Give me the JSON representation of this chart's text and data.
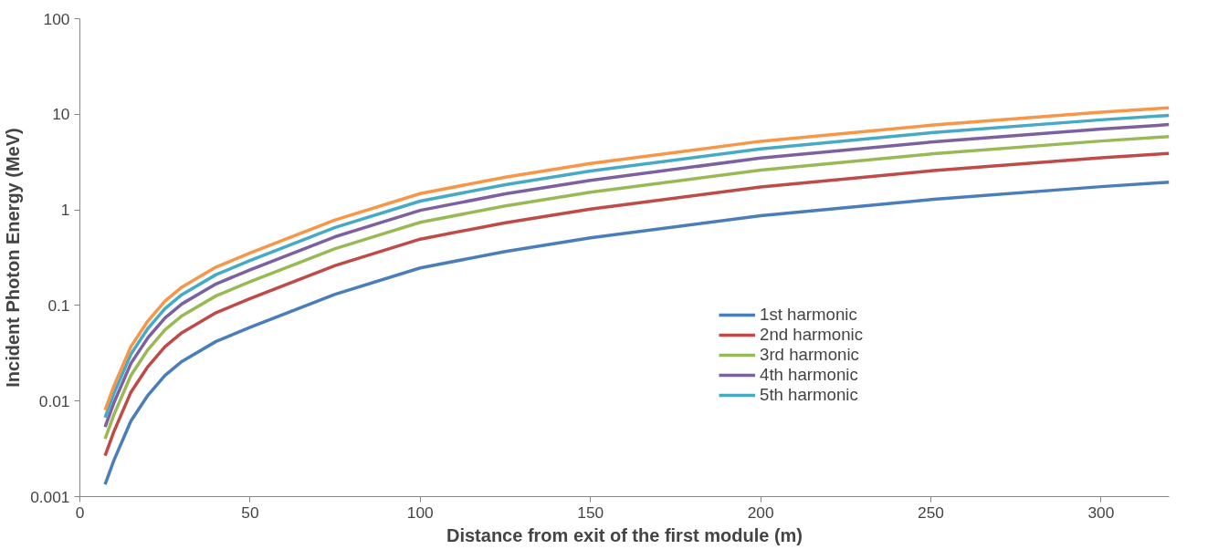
{
  "chart_data": {
    "type": "line",
    "xlabel": "Distance from exit of the first module (m)",
    "ylabel": "Incident Photon Energy (MeV)",
    "x": [
      7.4,
      10,
      15,
      20,
      25,
      30,
      40,
      50,
      75,
      100,
      125,
      150,
      200,
      250,
      300,
      320
    ],
    "series": [
      {
        "name": "1st harmonic",
        "color": "#4a7ebb",
        "values": [
          0.00134,
          0.0024,
          0.0062,
          0.0115,
          0.0185,
          0.026,
          0.042,
          0.059,
          0.131,
          0.247,
          0.367,
          0.51,
          0.87,
          1.28,
          1.75,
          1.95
        ]
      },
      {
        "name": "2nd harmonic",
        "color": "#be4b48",
        "values": [
          0.00268,
          0.0048,
          0.0124,
          0.023,
          0.037,
          0.052,
          0.084,
          0.118,
          0.262,
          0.494,
          0.734,
          1.02,
          1.74,
          2.56,
          3.5,
          3.9
        ]
      },
      {
        "name": "3rd harmonic",
        "color": "#98b954",
        "values": [
          0.00402,
          0.0072,
          0.0186,
          0.0345,
          0.0555,
          0.078,
          0.126,
          0.177,
          0.393,
          0.741,
          1.1,
          1.53,
          2.61,
          3.84,
          5.25,
          5.85
        ]
      },
      {
        "name": "4th harmonic",
        "color": "#7d60a0",
        "values": [
          0.00536,
          0.0096,
          0.0248,
          0.046,
          0.074,
          0.104,
          0.168,
          0.236,
          0.524,
          0.988,
          1.47,
          2.04,
          3.48,
          5.12,
          7.0,
          7.8
        ]
      },
      {
        "name": "5th harmonic",
        "color": "#46aac5",
        "values": [
          0.0067,
          0.012,
          0.031,
          0.0575,
          0.0925,
          0.13,
          0.21,
          0.295,
          0.655,
          1.235,
          1.835,
          2.55,
          4.35,
          6.4,
          8.75,
          9.75
        ]
      },
      {
        "color": "#f79646",
        "values": [
          0.00804,
          0.0144,
          0.0372,
          0.069,
          0.111,
          0.156,
          0.252,
          0.354,
          0.786,
          1.48,
          2.2,
          3.06,
          5.22,
          7.68,
          10.5,
          11.7
        ]
      }
    ],
    "xlim": [
      0,
      320
    ],
    "xticks": [
      0,
      50,
      100,
      150,
      200,
      250,
      300
    ],
    "ylim": [
      0.001,
      100
    ],
    "yticks": [
      {
        "value": 0.001,
        "label": "0.001"
      },
      {
        "value": 0.01,
        "label": "0.01"
      },
      {
        "value": 0.1,
        "label": "0.1"
      },
      1,
      10,
      100
    ],
    "log": "y",
    "grid": false,
    "legend": "right",
    "marker": "none",
    "line_style": "solid"
  }
}
